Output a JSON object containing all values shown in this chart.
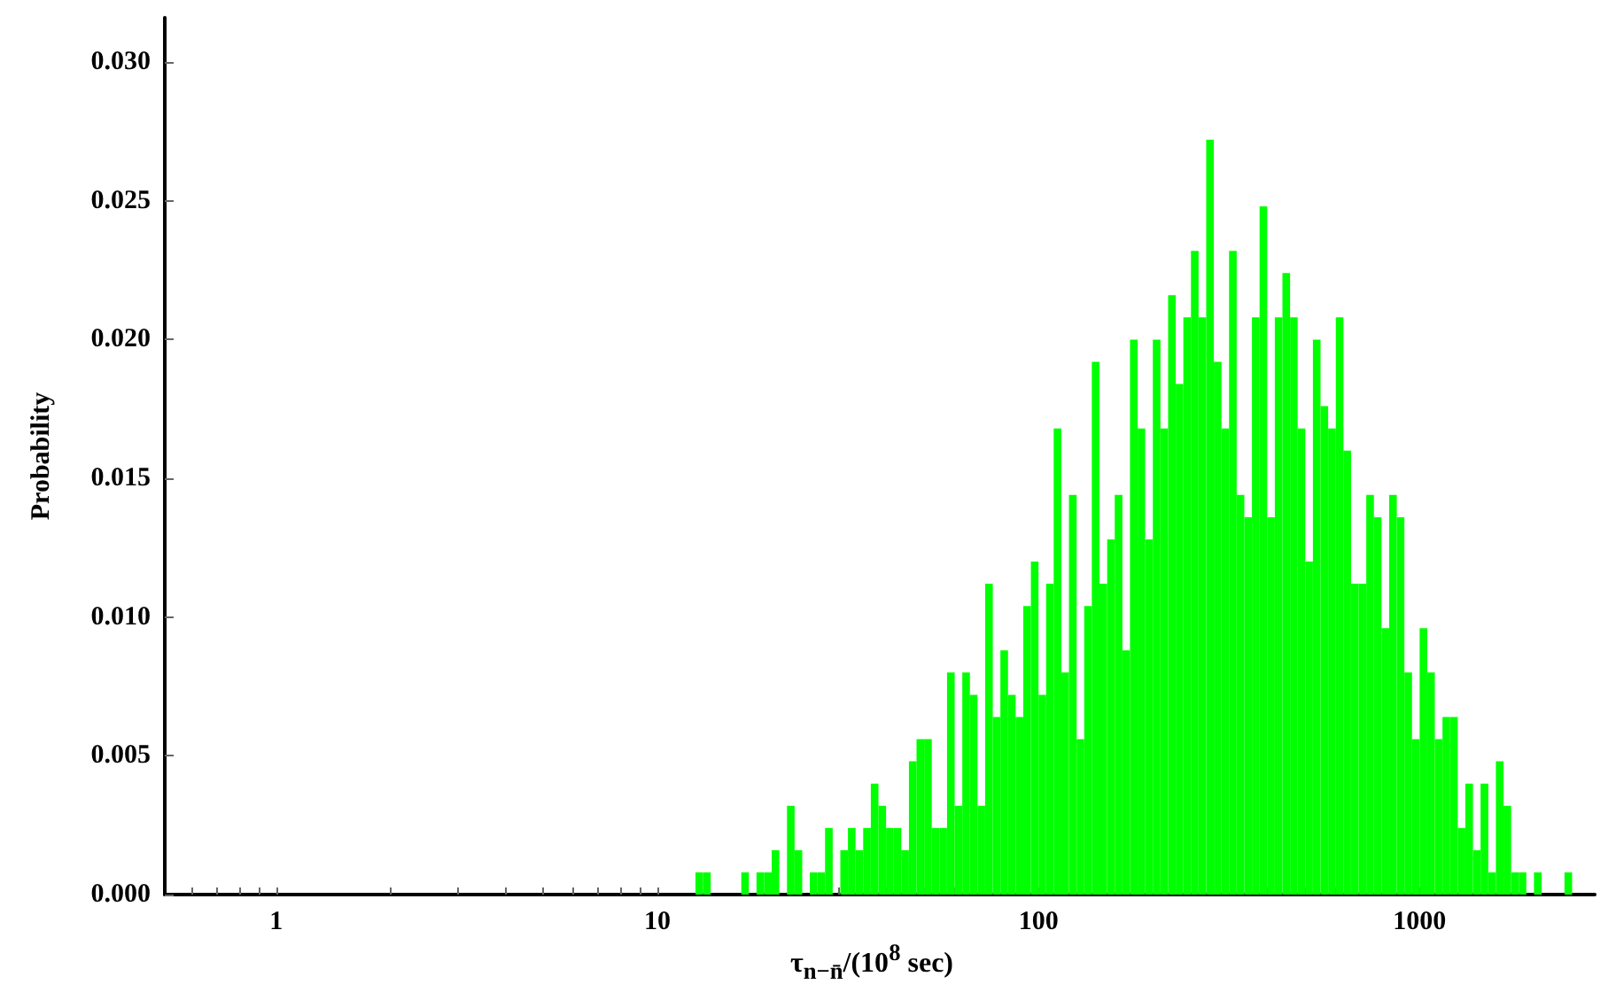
{
  "chart_data": {
    "type": "histogram",
    "xlabel": "τ$_{n−n̄}$/(10$^{8}$ sec)",
    "ylabel": "Probability",
    "color": "#00ff00",
    "log": "x",
    "bins": [
      12.59,
      13.18,
      13.8,
      14.45,
      15.14,
      15.85,
      16.6,
      17.38,
      18.2,
      19.05,
      19.95,
      20.89,
      21.88,
      22.91,
      23.99,
      25.12,
      26.3,
      27.54,
      28.84,
      30.2,
      31.62,
      33.11,
      34.67,
      36.31,
      38.02,
      39.81,
      41.69,
      43.65,
      45.71,
      47.86,
      50.12,
      52.48,
      54.95,
      57.54,
      60.26,
      63.1,
      66.07,
      69.18,
      72.44,
      75.86,
      79.43,
      83.18,
      87.1,
      91.2,
      95.5,
      100.0,
      104.7,
      109.6,
      114.8,
      120.2,
      125.9,
      131.8,
      138.0,
      144.5,
      151.4,
      158.5,
      166.0,
      173.8,
      182.0,
      190.5,
      199.5,
      208.9,
      218.8,
      229.1,
      239.9,
      251.2,
      263.0,
      275.4,
      288.4,
      302.0,
      316.2,
      331.1,
      346.7,
      363.1,
      380.2,
      398.1,
      416.9,
      436.5,
      457.1,
      478.6,
      501.2,
      524.8,
      549.5,
      575.4,
      602.6,
      631.0,
      660.7,
      691.8,
      724.4,
      758.6,
      794.3,
      831.8,
      871.0,
      912.0,
      955.0,
      1000,
      1047,
      1096,
      1148,
      1202,
      1259,
      1318,
      1380,
      1445,
      1514,
      1585,
      1660,
      1738,
      1820,
      1905,
      1995,
      2089,
      2188,
      2291,
      2399,
      2512
    ],
    "values": [
      0.0008,
      0.0008,
      0,
      0,
      0,
      0,
      0.0008,
      0,
      0.0008,
      0.0008,
      0.0016,
      0,
      0.0032,
      0.0016,
      0,
      0.0008,
      0.0008,
      0.0024,
      0,
      0.0016,
      0.0024,
      0.0016,
      0.0024,
      0.004,
      0.0032,
      0.0024,
      0.0024,
      0.0016,
      0.0048,
      0.0056,
      0.0056,
      0.0024,
      0.0024,
      0.008,
      0.0032,
      0.008,
      0.0072,
      0.0032,
      0.0112,
      0.0064,
      0.0088,
      0.0072,
      0.0064,
      0.0104,
      0.012,
      0.0072,
      0.0112,
      0.0168,
      0.008,
      0.0144,
      0.0056,
      0.0104,
      0.0192,
      0.0112,
      0.0128,
      0.0144,
      0.0088,
      0.02,
      0.0168,
      0.0128,
      0.02,
      0.0168,
      0.0216,
      0.0184,
      0.0208,
      0.0232,
      0.0208,
      0.0272,
      0.0192,
      0.0168,
      0.0232,
      0.0144,
      0.0136,
      0.0208,
      0.0248,
      0.0136,
      0.0208,
      0.0224,
      0.0208,
      0.0168,
      0.012,
      0.02,
      0.0176,
      0.0168,
      0.0208,
      0.016,
      0.0112,
      0.0112,
      0.0144,
      0.0136,
      0.0096,
      0.0144,
      0.0136,
      0.008,
      0.0056,
      0.0096,
      0.008,
      0.0056,
      0.0064,
      0.0064,
      0.0024,
      0.004,
      0.0016,
      0.004,
      0.0008,
      0.0048,
      0.0032,
      0.0008,
      0.0008,
      0,
      0.0008,
      0,
      0,
      0,
      0.0008
    ],
    "xlim": [
      0.51,
      2880
    ],
    "xticks": [
      {
        "value": 0.6,
        "label": null
      },
      {
        "value": 0.7,
        "label": null
      },
      {
        "value": 0.8,
        "label": null
      },
      {
        "value": 0.9,
        "label": null
      },
      1,
      {
        "value": 2,
        "label": null
      },
      {
        "value": 3,
        "label": null
      },
      {
        "value": 4,
        "label": null
      },
      {
        "value": 5,
        "label": null
      },
      {
        "value": 6,
        "label": null
      },
      {
        "value": 7,
        "label": null
      },
      {
        "value": 8,
        "label": null
      },
      {
        "value": 9,
        "label": null
      },
      10,
      {
        "value": 20,
        "label": null
      },
      {
        "value": 30,
        "label": null
      },
      {
        "value": 40,
        "label": null
      },
      {
        "value": 50,
        "label": null
      },
      {
        "value": 60,
        "label": null
      },
      {
        "value": 70,
        "label": null
      },
      {
        "value": 80,
        "label": null
      },
      {
        "value": 90,
        "label": null
      },
      100,
      {
        "value": 200,
        "label": null
      },
      {
        "value": 300,
        "label": null
      },
      {
        "value": 400,
        "label": null
      },
      {
        "value": 500,
        "label": null
      },
      {
        "value": 600,
        "label": null
      },
      {
        "value": 700,
        "label": null
      },
      {
        "value": 800,
        "label": null
      },
      {
        "value": 900,
        "label": null
      },
      1000,
      {
        "value": 2000,
        "label": null
      }
    ],
    "ylim": [
      0,
      0.0316
    ],
    "yticks": [
      {
        "value": 0,
        "label": "0.000"
      },
      {
        "value": 0.005,
        "label": "0.005"
      },
      {
        "value": 0.01,
        "label": "0.010"
      },
      {
        "value": 0.015,
        "label": "0.015"
      },
      {
        "value": 0.02,
        "label": "0.020"
      },
      {
        "value": 0.025,
        "label": "0.025"
      },
      {
        "value": 0.03,
        "label": "0.030"
      }
    ]
  }
}
